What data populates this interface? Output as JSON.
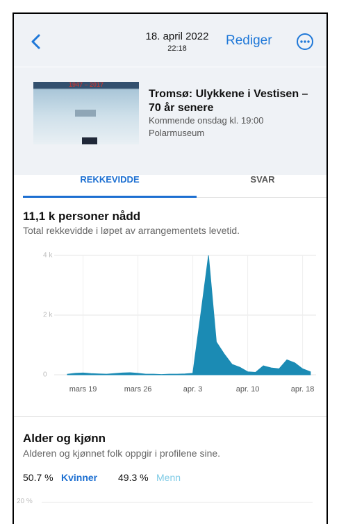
{
  "header": {
    "date": "18. april 2022",
    "time": "22:18",
    "edit": "Rediger"
  },
  "event": {
    "image_caption": "1947 – 2017",
    "title": "Tromsø: Ulykkene i Vestisen – 70 år senere",
    "time": "Kommende onsdag kl. 19:00",
    "place": "Polarmuseum"
  },
  "tabs": [
    "REKKEVIDDE",
    "SVAR"
  ],
  "reach": {
    "title": "11,1 k personer nådd",
    "subtitle": "Total rekkevidde i løpet av arrangementets levetid."
  },
  "chart_data": {
    "type": "area",
    "categories": [
      null,
      null,
      "mars 19",
      null,
      null,
      null,
      null,
      null,
      null,
      "mars 26",
      null,
      null,
      null,
      null,
      null,
      null,
      "apr. 3",
      null,
      null,
      null,
      null,
      null,
      null,
      "apr. 10",
      null,
      null,
      null,
      null,
      null,
      null,
      "apr. 18",
      null
    ],
    "values": [
      20,
      50,
      60,
      40,
      30,
      20,
      40,
      60,
      70,
      50,
      20,
      20,
      10,
      20,
      20,
      30,
      50,
      2000,
      4000,
      1100,
      700,
      350,
      250,
      100,
      80,
      300,
      230,
      200,
      500,
      400,
      200,
      100
    ],
    "color": "#1b8bb4",
    "ylim": [
      0,
      4000
    ],
    "yticks": [
      0,
      {
        "value": 2000,
        "label": "2 k"
      },
      {
        "value": 4000,
        "label": "4 k"
      }
    ],
    "grid": true
  },
  "demographics": {
    "title": "Alder og kjønn",
    "subtitle": "Alderen og kjønnet folk oppgir i profilene sine.",
    "women_share": "50.7 %",
    "women": "Kvinner",
    "men_share": "49.3 %",
    "men": "Menn",
    "axis_label": "20 %"
  }
}
